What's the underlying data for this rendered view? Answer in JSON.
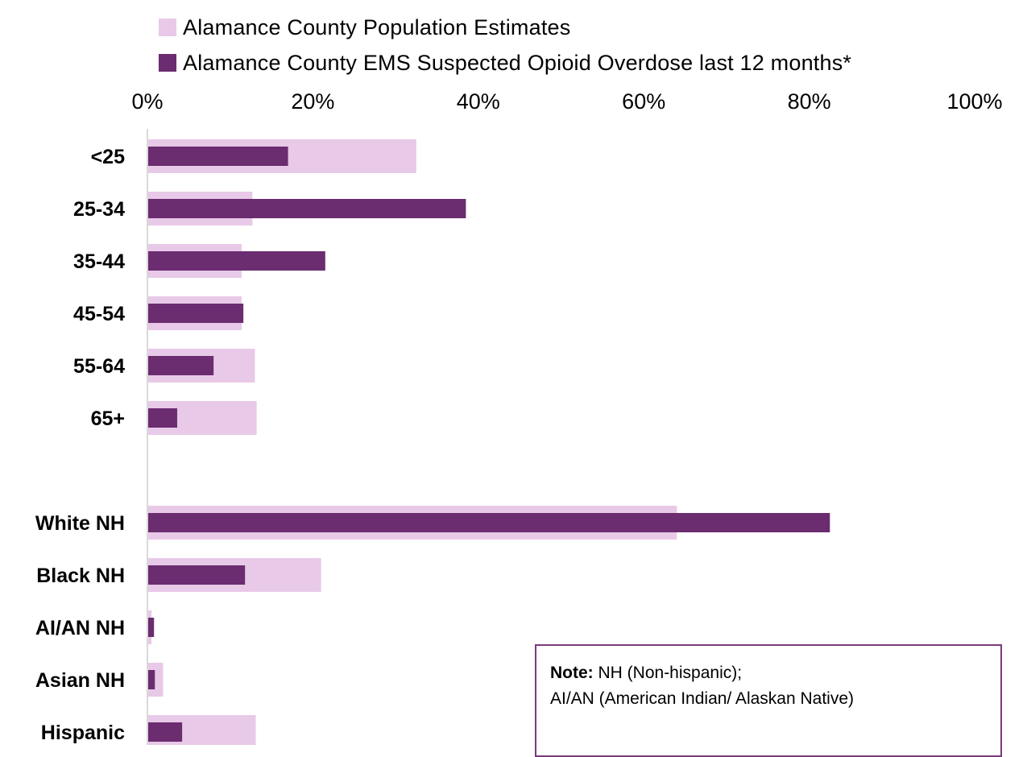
{
  "chart_data": {
    "type": "bar",
    "orientation": "horizontal",
    "categories": [
      "<25",
      "25-34",
      "35-44",
      "45-54",
      "55-64",
      "65+",
      "White NH",
      "Black NH",
      "AI/AN NH",
      "Asian NH",
      "Hispanic"
    ],
    "groups": [
      [
        "<25",
        "25-34",
        "35-44",
        "45-54",
        "55-64",
        "65+"
      ],
      [
        "White NH",
        "Black NH",
        "AI/AN NH",
        "Asian NH",
        "Hispanic"
      ]
    ],
    "series": [
      {
        "name": "Alamance County Population Estimates",
        "color": "#e8c9e8",
        "values": [
          32.5,
          12.7,
          11.4,
          11.4,
          13.0,
          13.2,
          64.0,
          21.0,
          0.5,
          1.9,
          13.1
        ]
      },
      {
        "name": "Alamance County EMS Suspected Opioid Overdose last 12 months*",
        "color": "#6b2c70",
        "values": [
          17.0,
          38.5,
          21.5,
          11.6,
          8.0,
          3.6,
          82.5,
          11.8,
          0.8,
          0.9,
          4.2
        ]
      }
    ],
    "xticks": [
      "0%",
      "20%",
      "40%",
      "60%",
      "80%",
      "100%"
    ],
    "xlim": [
      0,
      100
    ],
    "axis_position": "top",
    "legend_position": "top",
    "grid": false
  },
  "note": {
    "label": "Note:",
    "line1": " NH (Non-hispanic);",
    "line2": "AI/AN (American Indian/ Alaskan Native)"
  }
}
